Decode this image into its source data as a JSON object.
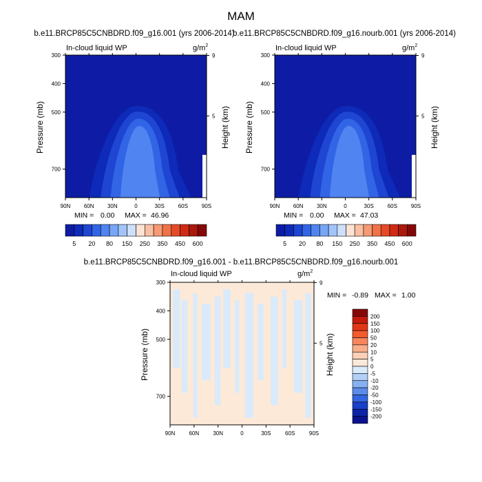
{
  "figure": {
    "title": "MAM"
  },
  "chart_data": [
    {
      "type": "heatmap",
      "title": "b.e11.BRCP85C5CNBDRD.f09_g16.001 (yrs 2006-2014)",
      "subtitle_left": "In-cloud liquid WP",
      "units": "g/m",
      "units_sup": "2",
      "ylabel": "Pressure (mb)",
      "ylabel_right": "Height (km)",
      "x_ticks": [
        "90N",
        "60N",
        "30N",
        "0",
        "30S",
        "60S",
        "90S"
      ],
      "y_ticks": [
        "300",
        "400",
        "500",
        "700"
      ],
      "y_ticks_values": [
        300,
        400,
        500,
        700
      ],
      "y_right_ticks": [
        "9",
        "5"
      ],
      "y_right_values": [
        9,
        5
      ],
      "ylim": [
        300,
        800
      ],
      "xlim": [
        90,
        -90
      ],
      "stats": {
        "min_label": "MIN =",
        "min": "0.00",
        "max_label": "MAX =",
        "max": "46.96"
      },
      "colorbar": {
        "orientation": "horizontal",
        "levels": [
          "5",
          "20",
          "80",
          "150",
          "250",
          "350",
          "450",
          "600"
        ],
        "colors": [
          "#0e1ca5",
          "#0e2ab8",
          "#1e46d2",
          "#3264e6",
          "#5084f0",
          "#78a6f6",
          "#a3c4f8",
          "#cde0fb",
          "#fde3d4",
          "#f9c0a4",
          "#f59a74",
          "#f07248",
          "#e54a28",
          "#d02a14",
          "#a91a0c",
          "#850808"
        ]
      }
    },
    {
      "type": "heatmap",
      "title": "b.e11.BRCP85C5CNBDRD.f09_g16.nourb.001 (yrs 2006-2014)",
      "subtitle_left": "In-cloud liquid WP",
      "units": "g/m",
      "units_sup": "2",
      "ylabel": "Pressure (mb)",
      "ylabel_right": "Height (km)",
      "x_ticks": [
        "90N",
        "60N",
        "30N",
        "0",
        "30S",
        "60S",
        "90S"
      ],
      "y_ticks": [
        "300",
        "400",
        "500",
        "700"
      ],
      "y_ticks_values": [
        300,
        400,
        500,
        700
      ],
      "y_right_ticks": [
        "9",
        "5"
      ],
      "y_right_values": [
        9,
        5
      ],
      "ylim": [
        300,
        800
      ],
      "xlim": [
        90,
        -90
      ],
      "stats": {
        "min_label": "MIN =",
        "min": "0.00",
        "max_label": "MAX =",
        "max": "47.03"
      },
      "colorbar": {
        "orientation": "horizontal",
        "levels": [
          "5",
          "20",
          "80",
          "150",
          "250",
          "350",
          "450",
          "600"
        ],
        "colors": [
          "#0e1ca5",
          "#0e2ab8",
          "#1e46d2",
          "#3264e6",
          "#5084f0",
          "#78a6f6",
          "#a3c4f8",
          "#cde0fb",
          "#fde3d4",
          "#f9c0a4",
          "#f59a74",
          "#f07248",
          "#e54a28",
          "#d02a14",
          "#a91a0c",
          "#850808"
        ]
      }
    },
    {
      "type": "heatmap",
      "title": "b.e11.BRCP85C5CNBDRD.f09_g16.001 - b.e11.BRCP85C5CNBDRD.f09_g16.nourb.001",
      "subtitle_left": "In-cloud liquid WP",
      "units": "g/m",
      "units_sup": "2",
      "ylabel": "Pressure (mb)",
      "ylabel_right": "Height (km)",
      "x_ticks": [
        "90N",
        "60N",
        "30N",
        "0",
        "30S",
        "60S",
        "90S"
      ],
      "y_ticks": [
        "300",
        "400",
        "500",
        "700"
      ],
      "y_ticks_values": [
        300,
        400,
        500,
        700
      ],
      "y_right_ticks": [
        "9",
        "5"
      ],
      "y_right_values": [
        9,
        5
      ],
      "ylim": [
        300,
        800
      ],
      "xlim": [
        90,
        -90
      ],
      "stats": {
        "min_label": "MIN =",
        "min": "-0.89",
        "max_label": "MAX =",
        "max": "1.00"
      },
      "colorbar": {
        "orientation": "vertical",
        "levels": [
          "200",
          "150",
          "100",
          "50",
          "20",
          "10",
          "5",
          "0",
          "-5",
          "-10",
          "-20",
          "-50",
          "-100",
          "-150",
          "-200"
        ],
        "colors": [
          "#850808",
          "#c41a0c",
          "#e23616",
          "#f35a2e",
          "#f7865c",
          "#f9ae8a",
          "#fbd0b6",
          "#fde9d8",
          "#d9eafa",
          "#b2cff6",
          "#86b0f2",
          "#5b8cea",
          "#3366e0",
          "#1840c8",
          "#0c22a8",
          "#0a1290"
        ]
      },
      "background_color": "#fde9d8",
      "pattern_color": "#d9eafa"
    }
  ]
}
